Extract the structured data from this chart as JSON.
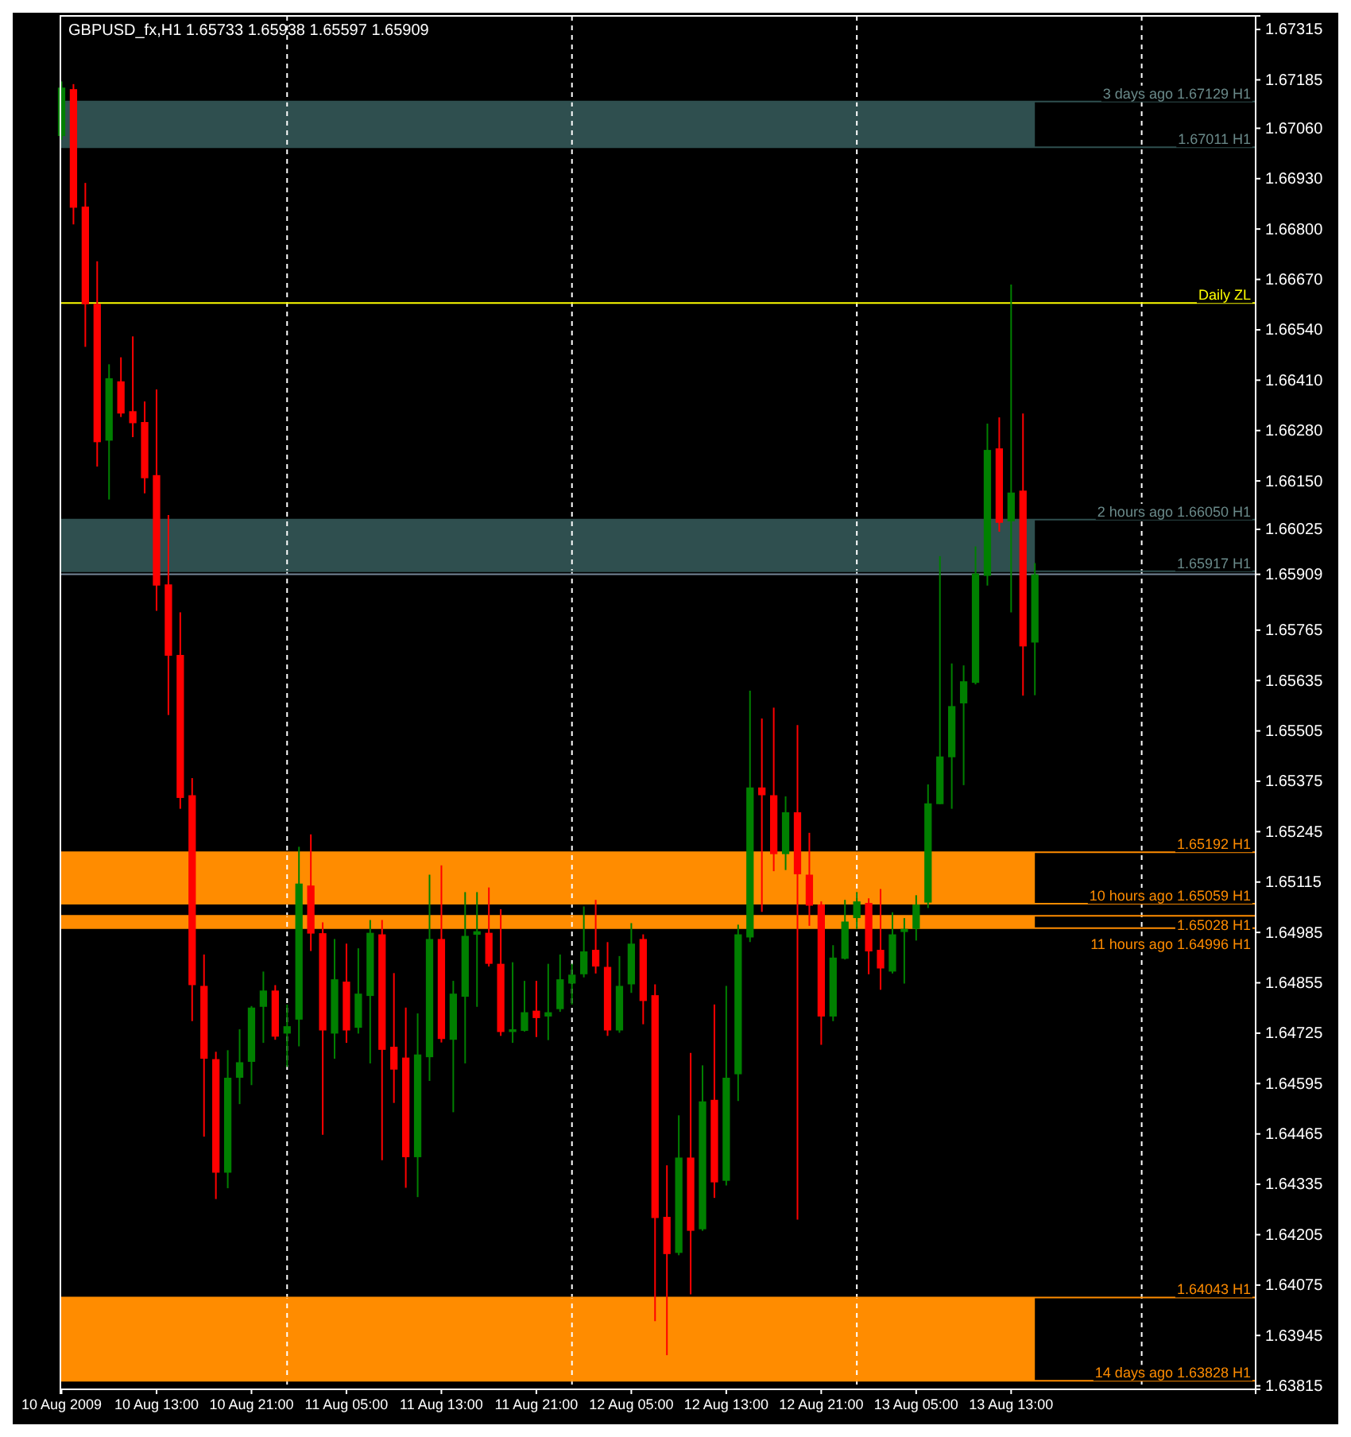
{
  "chart_data": {
    "type": "candlestick",
    "title": "GBPUSD_fx,H1  1.65733 1.65938 1.65597 1.65909",
    "x": [
      "2009-08-10T05:00",
      "2009-08-10T06:00",
      "2009-08-10T07:00",
      "2009-08-10T08:00",
      "2009-08-10T09:00",
      "2009-08-10T10:00",
      "2009-08-10T11:00",
      "2009-08-10T12:00",
      "2009-08-10T13:00",
      "2009-08-10T14:00",
      "2009-08-10T15:00",
      "2009-08-10T16:00",
      "2009-08-10T17:00",
      "2009-08-10T18:00",
      "2009-08-10T19:00",
      "2009-08-10T20:00",
      "2009-08-10T21:00",
      "2009-08-10T22:00",
      "2009-08-10T23:00",
      "2009-08-11T00:00",
      "2009-08-11T01:00",
      "2009-08-11T02:00",
      "2009-08-11T03:00",
      "2009-08-11T04:00",
      "2009-08-11T05:00",
      "2009-08-11T06:00",
      "2009-08-11T07:00",
      "2009-08-11T08:00",
      "2009-08-11T09:00",
      "2009-08-11T10:00",
      "2009-08-11T11:00",
      "2009-08-11T12:00",
      "2009-08-11T13:00",
      "2009-08-11T14:00",
      "2009-08-11T15:00",
      "2009-08-11T16:00",
      "2009-08-11T17:00",
      "2009-08-11T18:00",
      "2009-08-11T19:00",
      "2009-08-11T20:00",
      "2009-08-11T21:00",
      "2009-08-11T22:00",
      "2009-08-11T23:00",
      "2009-08-12T00:00",
      "2009-08-12T01:00",
      "2009-08-12T02:00",
      "2009-08-12T03:00",
      "2009-08-12T04:00",
      "2009-08-12T05:00",
      "2009-08-12T06:00",
      "2009-08-12T07:00",
      "2009-08-12T08:00",
      "2009-08-12T09:00",
      "2009-08-12T10:00",
      "2009-08-12T11:00",
      "2009-08-12T12:00",
      "2009-08-12T13:00",
      "2009-08-12T14:00",
      "2009-08-12T15:00",
      "2009-08-12T16:00",
      "2009-08-12T17:00",
      "2009-08-12T18:00",
      "2009-08-12T19:00",
      "2009-08-12T20:00",
      "2009-08-12T21:00",
      "2009-08-12T22:00",
      "2009-08-12T23:00",
      "2009-08-13T00:00",
      "2009-08-13T01:00",
      "2009-08-13T02:00",
      "2009-08-13T03:00",
      "2009-08-13T04:00",
      "2009-08-13T05:00",
      "2009-08-13T06:00",
      "2009-08-13T07:00",
      "2009-08-13T08:00",
      "2009-08-13T09:00",
      "2009-08-13T10:00",
      "2009-08-13T11:00",
      "2009-08-13T12:00",
      "2009-08-13T13:00",
      "2009-08-13T14:00",
      "2009-08-13T15:00"
    ],
    "ohlc": [
      [
        1.6704,
        1.67181,
        1.6703,
        1.67165
      ],
      [
        1.67161,
        1.67174,
        1.66812,
        1.66855
      ],
      [
        1.66858,
        1.66919,
        1.66496,
        1.66606
      ],
      [
        1.66607,
        1.66717,
        1.66187,
        1.6625
      ],
      [
        1.66254,
        1.66451,
        1.66102,
        1.66415
      ],
      [
        1.66407,
        1.66469,
        1.66315,
        1.66324
      ],
      [
        1.6633,
        1.66523,
        1.66263,
        1.66299
      ],
      [
        1.66302,
        1.66355,
        1.66118,
        1.66157
      ],
      [
        1.66165,
        1.66386,
        1.65815,
        1.6588
      ],
      [
        1.65883,
        1.66062,
        1.65546,
        1.65699
      ],
      [
        1.65701,
        1.65811,
        1.65304,
        1.65332
      ],
      [
        1.65339,
        1.65383,
        1.64756,
        1.64849
      ],
      [
        1.64847,
        1.64928,
        1.64458,
        1.64659
      ],
      [
        1.64658,
        1.64677,
        1.64297,
        1.64365
      ],
      [
        1.64365,
        1.64681,
        1.64325,
        1.6461
      ],
      [
        1.6461,
        1.64735,
        1.64542,
        1.6465
      ],
      [
        1.64651,
        1.64795,
        1.64591,
        1.64791
      ],
      [
        1.64793,
        1.64884,
        1.647,
        1.64835
      ],
      [
        1.64835,
        1.64849,
        1.64708,
        1.64716
      ],
      [
        1.64724,
        1.64799,
        1.64638,
        1.64743
      ],
      [
        1.6476,
        1.65206,
        1.64691,
        1.65111
      ],
      [
        1.65106,
        1.65238,
        1.64937,
        1.64982
      ],
      [
        1.64983,
        1.65011,
        1.64463,
        1.64732
      ],
      [
        1.64724,
        1.64968,
        1.64659,
        1.64864
      ],
      [
        1.64858,
        1.64956,
        1.647,
        1.64732
      ],
      [
        1.64739,
        1.64944,
        1.64724,
        1.64827
      ],
      [
        1.64821,
        1.65017,
        1.64647,
        1.64984
      ],
      [
        1.6498,
        1.65017,
        1.64397,
        1.64682
      ],
      [
        1.6469,
        1.6488,
        1.64545,
        1.64631
      ],
      [
        1.64662,
        1.64791,
        1.64326,
        1.64405
      ],
      [
        1.64405,
        1.64776,
        1.64302,
        1.6467
      ],
      [
        1.64663,
        1.65134,
        1.64602,
        1.64968
      ],
      [
        1.64968,
        1.65158,
        1.64701,
        1.6471
      ],
      [
        1.64708,
        1.6486,
        1.64521,
        1.64827
      ],
      [
        1.64819,
        1.65089,
        1.64647,
        1.64976
      ],
      [
        1.64979,
        1.65089,
        1.64793,
        1.64988
      ],
      [
        1.64984,
        1.65101,
        1.64897,
        1.64904
      ],
      [
        1.64904,
        1.65045,
        1.64718,
        1.64728
      ],
      [
        1.64728,
        1.64908,
        1.647,
        1.64735
      ],
      [
        1.64731,
        1.6486,
        1.64729,
        1.64779
      ],
      [
        1.64783,
        1.6486,
        1.64715,
        1.64764
      ],
      [
        1.64768,
        1.64904,
        1.64707,
        1.64779
      ],
      [
        1.64787,
        1.64928,
        1.6478,
        1.64864
      ],
      [
        1.64853,
        1.64904,
        1.64799,
        1.64876
      ],
      [
        1.64877,
        1.65052,
        1.64869,
        1.64936
      ],
      [
        1.6494,
        1.65069,
        1.64879,
        1.64897
      ],
      [
        1.64896,
        1.6496,
        1.64718,
        1.64732
      ],
      [
        1.64732,
        1.64924,
        1.64726,
        1.64847
      ],
      [
        1.64851,
        1.65009,
        1.64829,
        1.64956
      ],
      [
        1.64968,
        1.6498,
        1.64748,
        1.64808
      ],
      [
        1.64823,
        1.64851,
        1.63982,
        1.64248
      ],
      [
        1.64251,
        1.64384,
        1.63894,
        1.64155
      ],
      [
        1.64158,
        1.64513,
        1.64152,
        1.64404
      ],
      [
        1.64404,
        1.64674,
        1.64051,
        1.64215
      ],
      [
        1.64219,
        1.64642,
        1.64215,
        1.64549
      ],
      [
        1.64553,
        1.64799,
        1.643,
        1.6434
      ],
      [
        1.64344,
        1.64847,
        1.64332,
        1.6461
      ],
      [
        1.64619,
        1.65005,
        1.6455,
        1.6498
      ],
      [
        1.64972,
        1.65609,
        1.6496,
        1.65359
      ],
      [
        1.65359,
        1.65537,
        1.65038,
        1.65339
      ],
      [
        1.65339,
        1.65565,
        1.65143,
        1.65187
      ],
      [
        1.65187,
        1.65336,
        1.65146,
        1.65295
      ],
      [
        1.65295,
        1.6552,
        1.64244,
        1.65135
      ],
      [
        1.65134,
        1.65242,
        1.65002,
        1.65054
      ],
      [
        1.65057,
        1.65065,
        1.64695,
        1.64768
      ],
      [
        1.64768,
        1.64952,
        1.64756,
        1.6492
      ],
      [
        1.64917,
        1.65069,
        1.64915,
        1.65013
      ],
      [
        1.65022,
        1.65089,
        1.64994,
        1.65065
      ],
      [
        1.65061,
        1.65073,
        1.64877,
        1.64936
      ],
      [
        1.6494,
        1.65097,
        1.64837,
        1.64892
      ],
      [
        1.64884,
        1.65037,
        1.64879,
        1.6498
      ],
      [
        1.64986,
        1.65022,
        1.64853,
        1.64994
      ],
      [
        1.64994,
        1.65081,
        1.64964,
        1.65057
      ],
      [
        1.65062,
        1.65367,
        1.65048,
        1.65318
      ],
      [
        1.65316,
        1.65956,
        1.65316,
        1.65439
      ],
      [
        1.65437,
        1.65679,
        1.65304,
        1.65569
      ],
      [
        1.65576,
        1.65674,
        1.65365,
        1.65633
      ],
      [
        1.65629,
        1.65981,
        1.65625,
        1.65911
      ],
      [
        1.65905,
        1.66298,
        1.6588,
        1.6623
      ],
      [
        1.66234,
        1.66314,
        1.66019,
        1.66042
      ],
      [
        1.66046,
        1.66657,
        1.65811,
        1.6612
      ],
      [
        1.66125,
        1.66324,
        1.65596,
        1.65723
      ],
      [
        1.65733,
        1.65938,
        1.65597,
        1.65909
      ]
    ],
    "colors": [
      "#008000",
      "#ff0000",
      "#ff0000",
      "#ff0000",
      "#008000",
      "#ff0000",
      "#ff0000",
      "#ff0000",
      "#ff0000",
      "#ff0000",
      "#ff0000",
      "#ff0000",
      "#ff0000",
      "#ff0000",
      "#008000",
      "#008000",
      "#008000",
      "#008000",
      "#ff0000",
      "#008000",
      "#008000",
      "#ff0000",
      "#ff0000",
      "#008000",
      "#ff0000",
      "#008000",
      "#008000",
      "#ff0000",
      "#ff0000",
      "#ff0000",
      "#008000",
      "#008000",
      "#ff0000",
      "#008000",
      "#008000",
      "#008000",
      "#ff0000",
      "#ff0000",
      "#008000",
      "#008000",
      "#ff0000",
      "#008000",
      "#008000",
      "#008000",
      "#008000",
      "#ff0000",
      "#ff0000",
      "#008000",
      "#008000",
      "#ff0000",
      "#ff0000",
      "#ff0000",
      "#008000",
      "#ff0000",
      "#008000",
      "#ff0000",
      "#008000",
      "#008000",
      "#008000",
      "#ff0000",
      "#ff0000",
      "#008000",
      "#ff0000",
      "#ff0000",
      "#ff0000",
      "#008000",
      "#008000",
      "#008000",
      "#ff0000",
      "#ff0000",
      "#008000",
      "#008000",
      "#008000",
      "#008000",
      "#008000",
      "#008000",
      "#008000",
      "#008000",
      "#008000",
      "#ff0000",
      "#008000",
      "#ff0000",
      "#008000"
    ],
    "xlim": [
      "2009-08-10T04:54",
      "2009-08-14T09:36"
    ],
    "xticks": [
      {
        "value": "2009-08-10T05:00",
        "label": "10 Aug 2009"
      },
      {
        "value": "2009-08-10T13:00",
        "label": "10 Aug 13:00"
      },
      {
        "value": "2009-08-10T21:00",
        "label": "10 Aug 21:00"
      },
      {
        "value": "2009-08-11T05:00",
        "label": "11 Aug 05:00"
      },
      {
        "value": "2009-08-11T13:00",
        "label": "11 Aug 13:00"
      },
      {
        "value": "2009-08-11T21:00",
        "label": "11 Aug 21:00"
      },
      {
        "value": "2009-08-12T05:00",
        "label": "12 Aug 05:00"
      },
      {
        "value": "2009-08-12T13:00",
        "label": "12 Aug 13:00"
      },
      {
        "value": "2009-08-12T21:00",
        "label": "12 Aug 21:00"
      },
      {
        "value": "2009-08-13T05:00",
        "label": "13 Aug 05:00"
      },
      {
        "value": "2009-08-13T13:00",
        "label": "13 Aug 13:00"
      }
    ],
    "ylim": [
      1.63806,
      1.6735
    ],
    "yticks": [
      1.67315,
      1.67185,
      {
        "value": 1.6706,
        "label": "1.67060"
      },
      {
        "value": 1.6693,
        "label": "1.66930"
      },
      {
        "value": 1.668,
        "label": "1.66800"
      },
      {
        "value": 1.6667,
        "label": "1.66670"
      },
      {
        "value": 1.6654,
        "label": "1.66540"
      },
      {
        "value": 1.6641,
        "label": "1.66410"
      },
      {
        "value": 1.6628,
        "label": "1.66280"
      },
      {
        "value": 1.6615,
        "label": "1.66150"
      },
      1.66025,
      1.65909,
      1.65765,
      1.65635,
      1.65505,
      1.65375,
      1.65245,
      1.65115,
      1.64985,
      1.64855,
      1.64725,
      1.64595,
      1.64465,
      1.64335,
      1.64205,
      1.64075,
      1.63945,
      1.63815
    ],
    "bands": [
      {
        "axis": "y",
        "from": 1.67011,
        "to": 1.67129,
        "color": "#2f4f4f"
      },
      {
        "axis": "y",
        "from": 1.65917,
        "to": 1.6605,
        "color": "#2f4f4f"
      },
      {
        "axis": "y",
        "from": 1.65059,
        "to": 1.65192,
        "color": "#ff8c00"
      },
      {
        "axis": "y",
        "from": 1.64996,
        "to": 1.65028,
        "color": "#ff8c00"
      },
      {
        "axis": "y",
        "from": 1.63828,
        "to": 1.64043,
        "color": "#ff8c00"
      }
    ],
    "ref_lines": [
      {
        "axis": "x",
        "value": "2009-08-11T00:00",
        "color": "#ffffff",
        "line_style": "dashed"
      },
      {
        "axis": "x",
        "value": "2009-08-12T00:00",
        "color": "#ffffff",
        "line_style": "dashed"
      },
      {
        "axis": "x",
        "value": "2009-08-13T00:00",
        "color": "#ffffff",
        "line_style": "dashed"
      },
      {
        "axis": "x",
        "value": "2009-08-14T00:00",
        "color": "#ffffff",
        "line_style": "dashed"
      },
      {
        "axis": "y",
        "value": 1.67129,
        "label": "3 days ago 1.67129 H1",
        "color": "#2f4f4f"
      },
      {
        "axis": "y",
        "value": 1.67011,
        "label": "1.67011 H1",
        "color": "#2f4f4f"
      },
      {
        "axis": "y",
        "value": 1.66609,
        "label": "Daily ZL",
        "color": "#ffff00"
      },
      {
        "axis": "y",
        "value": 1.6605,
        "label": "2 hours ago 1.66050 H1",
        "color": "#2f4f4f"
      },
      {
        "axis": "y",
        "value": 1.65917,
        "label": "1.65917 H1",
        "color": "#2f4f4f"
      },
      {
        "axis": "y",
        "value": 1.65909,
        "color": "#778899"
      },
      {
        "axis": "y",
        "value": 1.65192,
        "label": "1.65192 H1",
        "color": "#ff8c00"
      },
      {
        "axis": "y",
        "value": 1.65059,
        "label": "10 hours ago 1.65059 H1",
        "color": "#ff8c00"
      },
      {
        "axis": "y",
        "value": 1.65028,
        "label": "1.65028 H1",
        "color": "#ff8c00"
      },
      {
        "axis": "y",
        "value": 1.64996,
        "label": "11 hours ago 1.64996 H1",
        "color": "#ff8c00"
      },
      {
        "axis": "y",
        "value": 1.64043,
        "label": "1.64043 H1",
        "color": "#ff8c00"
      },
      {
        "axis": "y",
        "value": 1.63828,
        "label": "14 days ago 1.63828 H1",
        "color": "#ff8c00"
      }
    ]
  }
}
